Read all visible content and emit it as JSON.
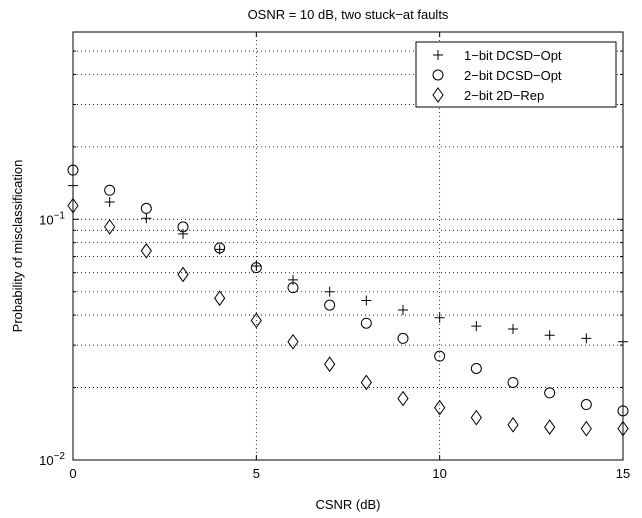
{
  "chart_data": {
    "type": "scatter",
    "title": "OSNR = 10 dB, two stuck−at faults",
    "xlabel": "CSNR (dB)",
    "ylabel": "Probability of misclassification",
    "xlim": [
      0,
      15
    ],
    "ylim": [
      0.01,
      0.6
    ],
    "yscale": "log",
    "grid": true,
    "legend_position": "top-right",
    "x_ticks": [
      0,
      5,
      10,
      15
    ],
    "x_tick_labels": [
      "0",
      "5",
      "10",
      "15"
    ],
    "y_major_ticks": [
      {
        "value": 0.1,
        "base": "10",
        "exp": "−1"
      },
      {
        "value": 0.01,
        "base": "10",
        "exp": "−2"
      }
    ],
    "x": [
      0,
      1,
      2,
      3,
      4,
      5,
      6,
      7,
      8,
      9,
      10,
      11,
      12,
      13,
      14,
      15
    ],
    "series": [
      {
        "name": "1−bit DCSD−Opt",
        "marker": "plus",
        "values": [
          0.138,
          0.118,
          0.101,
          0.087,
          0.075,
          0.064,
          0.056,
          0.05,
          0.046,
          0.042,
          0.039,
          0.036,
          0.035,
          0.033,
          0.032,
          0.031
        ]
      },
      {
        "name": "2−bit DCSD−Opt",
        "marker": "circle",
        "values": [
          0.16,
          0.132,
          0.111,
          0.093,
          0.076,
          0.063,
          0.052,
          0.044,
          0.037,
          0.032,
          0.027,
          0.024,
          0.021,
          0.019,
          0.017,
          0.016
        ]
      },
      {
        "name": "2−bit 2D−Rep",
        "marker": "diamond",
        "values": [
          0.114,
          0.093,
          0.074,
          0.059,
          0.047,
          0.038,
          0.031,
          0.025,
          0.021,
          0.018,
          0.0165,
          0.015,
          0.014,
          0.0137,
          0.0135,
          0.0135
        ]
      }
    ]
  }
}
